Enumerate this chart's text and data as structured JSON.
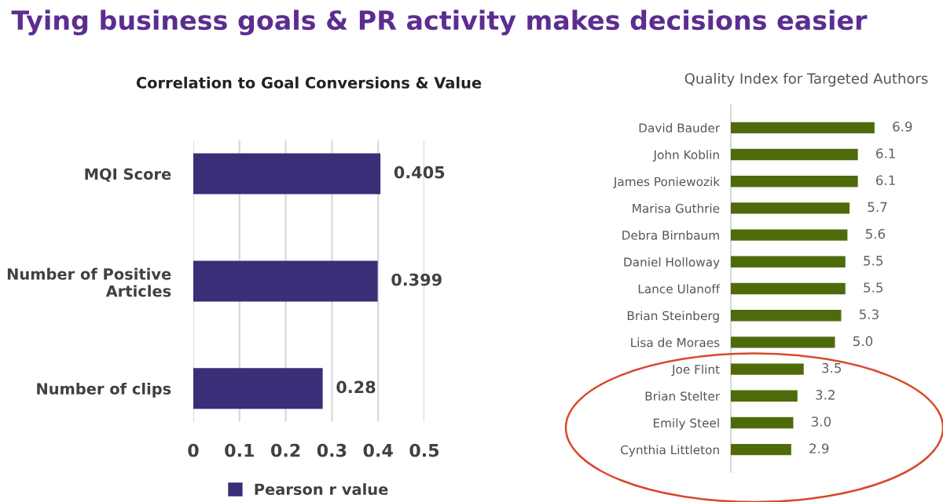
{
  "chart_data": [
    {
      "type": "bar",
      "orientation": "horizontal",
      "title": "Correlation to Goal Conversions & Value",
      "annotations": [
        "Tying business goals & PR activity makes decisions easier"
      ],
      "categories": [
        "MQI Score",
        "Number of Positive Articles",
        "Number of clips"
      ],
      "series": [
        {
          "name": "Pearson r value",
          "color": "#3b2d78",
          "values": [
            0.405,
            0.399,
            0.28
          ]
        }
      ],
      "xlim": [
        0,
        0.5
      ],
      "xticks": [
        0,
        0.1,
        0.2,
        0.3,
        0.4,
        0.5
      ],
      "grid": "x",
      "legend": "bottom",
      "data_labels": true
    },
    {
      "type": "bar",
      "orientation": "horizontal",
      "title": "Quality Index for Targeted Authors",
      "categories": [
        "David Bauder",
        "John Koblin",
        "James Poniewozik",
        "Marisa Guthrie",
        "Debra Birnbaum",
        "Daniel Holloway",
        "Lance Ulanoff",
        "Brian Steinberg",
        "Lisa de Moraes",
        "Joe Flint",
        "Brian Stelter",
        "Emily Steel",
        "Cynthia Littleton"
      ],
      "series": [
        {
          "color": "#4e6b0b",
          "values": [
            6.9,
            6.1,
            6.1,
            5.7,
            5.6,
            5.5,
            5.5,
            5.3,
            5.0,
            3.5,
            3.2,
            3.0,
            2.9
          ],
          "value_labels": [
            "6.9",
            "6.1",
            "6.1",
            "5.7",
            "5.6",
            "5.5",
            "5.5",
            "5.3",
            "5.0",
            "3.5",
            "3.2",
            "3.0",
            "2.9"
          ]
        }
      ],
      "tick_labels": "y",
      "grid": false,
      "legend": false
    }
  ]
}
